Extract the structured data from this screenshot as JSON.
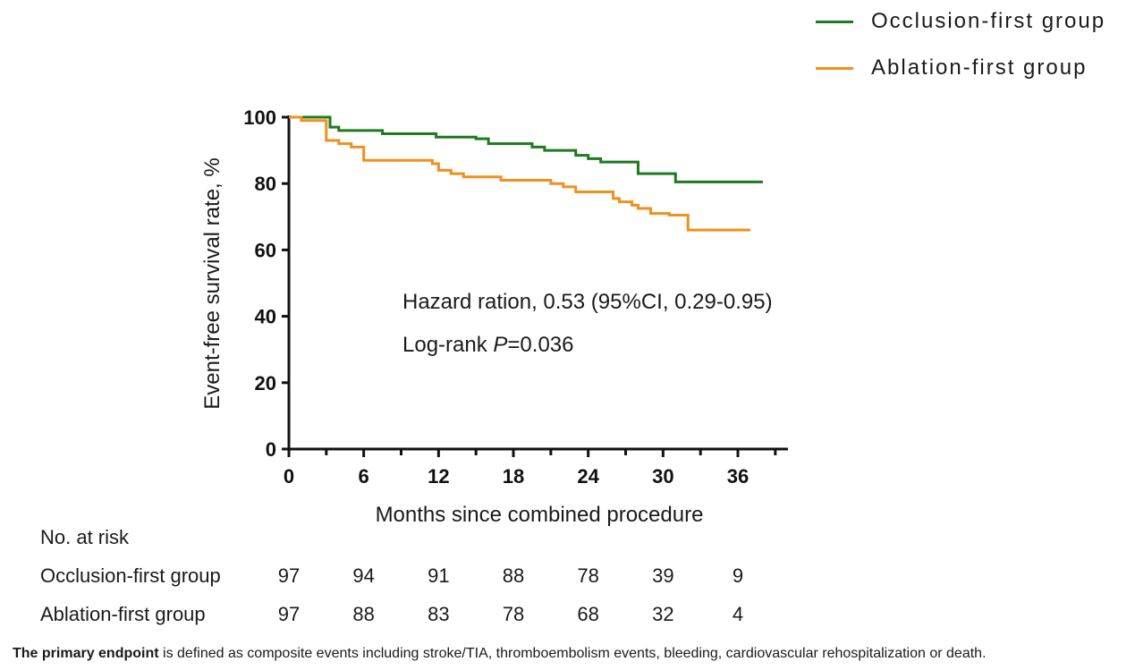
{
  "chart_data": {
    "type": "line",
    "step": true,
    "xlabel": "Months since combined procedure",
    "ylabel": "Event-free survival rate, %",
    "xticks": [
      0,
      6,
      12,
      18,
      24,
      30,
      36
    ],
    "yticks": [
      0,
      20,
      40,
      60,
      80,
      100
    ],
    "xlim": [
      0,
      40
    ],
    "ylim": [
      0,
      100
    ],
    "grid": false,
    "legend_position": "top-right",
    "series": [
      {
        "name": "Occlusion-first group",
        "color": "#1e7a1e",
        "x": [
          0,
          3,
          3.3,
          4,
          7.5,
          11.8,
          15,
          16,
          19.5,
          20.5,
          23,
          24,
          25,
          28,
          31,
          38
        ],
        "y": [
          100,
          100,
          97,
          96,
          95,
          94,
          93.5,
          92,
          91,
          90,
          88.5,
          87.5,
          86.5,
          83,
          80.5,
          80.5
        ]
      },
      {
        "name": "Ablation-first group",
        "color": "#f0901e",
        "x": [
          0,
          1,
          3,
          4,
          5,
          6,
          9,
          11.5,
          12,
          13,
          14,
          17,
          21,
          22,
          23,
          26,
          26.5,
          27.5,
          28,
          29,
          30.5,
          32,
          37
        ],
        "y": [
          100,
          99,
          93,
          92,
          91,
          87,
          87,
          86,
          84,
          83,
          82,
          81,
          80,
          79,
          77.5,
          75.5,
          74.5,
          73.5,
          72.5,
          71,
          70.5,
          66,
          66
        ]
      }
    ],
    "annotations": [
      "Hazard ration, 0.53 (95%CI, 0.29-0.95)",
      "Log-rank P=0.036"
    ]
  },
  "legend": [
    {
      "label": "Occlusion-first group",
      "color": "#1e7a1e"
    },
    {
      "label": "Ablation-first group",
      "color": "#f0901e"
    }
  ],
  "annotation": {
    "hazard": "Hazard ration, 0.53 (95%CI, 0.29-0.95)",
    "logrank_prefix": "Log-rank ",
    "logrank_p": "P",
    "logrank_value": "=0.036"
  },
  "risk_table": {
    "title": "No. at risk",
    "times": [
      0,
      6,
      12,
      18,
      24,
      30,
      36
    ],
    "rows": [
      {
        "label": "Occlusion-first group",
        "values": [
          "97",
          "94",
          "91",
          "88",
          "78",
          "39",
          "9"
        ]
      },
      {
        "label": "Ablation-first group",
        "values": [
          "97",
          "88",
          "83",
          "78",
          "68",
          "32",
          "4"
        ]
      }
    ]
  },
  "footnote": {
    "bold": "The primary endpoint",
    "text": " is defined as composite events including stroke/TIA, thromboembolism events, bleeding, cardiovascular rehospitalization or death."
  }
}
